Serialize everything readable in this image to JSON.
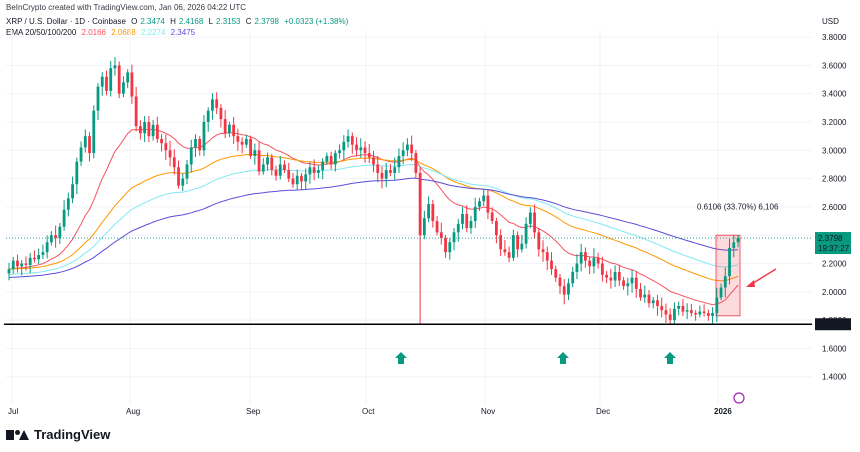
{
  "credit": "BeInCrypto created with TradingView.com, Jan 06, 2026 04:22 UTC",
  "legend": {
    "symbol": "XRP / U.S. Dollar · 1D · Coinbase",
    "o_label": "O",
    "o_value": "2.3474",
    "h_label": "H",
    "h_value": "2.4168",
    "l_label": "L",
    "l_value": "2.3153",
    "c_label": "C",
    "c_value": "2.3798",
    "change": "+0.0323 (+1.38%)",
    "ema_label": "EMA 20/50/100/200",
    "ema20": "2.0166",
    "ema50": "2.0688",
    "ema100": "2.2274",
    "ema200": "2.3475"
  },
  "currency": "USD",
  "brand": "TradingView",
  "colors": {
    "up": "#089981",
    "down": "#f23645",
    "ema20": "#f7525f",
    "ema50": "#ff9800",
    "ema100": "#82e8f2",
    "ema200": "#5b4dd9",
    "support": "#000000"
  },
  "chart_data": {
    "type": "candlestick",
    "symbol": "XRP / U.S. Dollar",
    "timeframe": "1D",
    "x_tick_labels": [
      "Jul",
      "Aug",
      "Sep",
      "Oct",
      "Nov",
      "Dec",
      "2026"
    ],
    "y_tick_labels": [
      "1.4000",
      "1.6000",
      "1.8000",
      "2.0000",
      "2.2000",
      "2.4000",
      "2.6000",
      "2.8000",
      "3.0000",
      "3.2000",
      "3.4000",
      "3.6000",
      "3.8000"
    ],
    "ylim": [
      1.2,
      3.85
    ],
    "support_level": 1.7708,
    "support_label": "1.7708",
    "last_price": 2.3798,
    "last_price_label": "2.3798",
    "countdown_label": "19:37:27",
    "measure_label": "0.6106 (33.70%) 6,106",
    "closes": [
      2.16,
      2.22,
      2.18,
      2.2,
      2.19,
      2.24,
      2.23,
      2.26,
      2.28,
      2.35,
      2.4,
      2.38,
      2.46,
      2.58,
      2.66,
      2.76,
      2.92,
      3.02,
      3.1,
      2.98,
      3.28,
      3.45,
      3.52,
      3.42,
      3.58,
      3.6,
      3.4,
      3.48,
      3.55,
      3.38,
      3.17,
      3.12,
      3.2,
      3.1,
      3.18,
      3.08,
      3.05,
      3.0,
      2.95,
      2.88,
      2.75,
      2.8,
      2.9,
      3.02,
      3.08,
      3.0,
      3.2,
      3.28,
      3.36,
      3.3,
      3.22,
      3.12,
      3.18,
      3.1,
      3.06,
      3.04,
      3.08,
      2.96,
      3.0,
      2.85,
      2.9,
      2.95,
      2.86,
      2.82,
      2.9,
      2.86,
      2.8,
      2.76,
      2.82,
      2.78,
      2.83,
      2.88,
      2.84,
      2.86,
      2.92,
      2.96,
      2.9,
      2.98,
      3.0,
      3.06,
      3.1,
      3.04,
      3.0,
      3.02,
      2.98,
      2.95,
      2.9,
      2.84,
      2.8,
      2.86,
      2.84,
      2.88,
      2.96,
      3.0,
      3.04,
      2.98,
      2.84,
      2.4,
      2.52,
      2.62,
      2.5,
      2.42,
      2.38,
      2.28,
      2.35,
      2.42,
      2.48,
      2.55,
      2.45,
      2.5,
      2.6,
      2.64,
      2.68,
      2.56,
      2.5,
      2.4,
      2.3,
      2.28,
      2.24,
      2.4,
      2.3,
      2.34,
      2.48,
      2.56,
      2.42,
      2.3,
      2.28,
      2.22,
      2.16,
      2.1,
      2.04,
      1.98,
      2.06,
      2.14,
      2.2,
      2.28,
      2.22,
      2.18,
      2.24,
      2.2,
      2.12,
      2.1,
      2.08,
      2.14,
      2.08,
      2.04,
      2.06,
      2.1,
      2.02,
      1.96,
      1.98,
      1.92,
      1.94,
      1.9,
      1.87,
      1.84,
      1.8,
      1.88,
      1.9,
      1.86,
      1.87,
      1.85,
      1.84,
      1.86,
      1.85,
      1.83,
      1.85,
      1.96,
      2.03,
      2.11,
      2.31,
      2.35,
      2.38
    ]
  }
}
